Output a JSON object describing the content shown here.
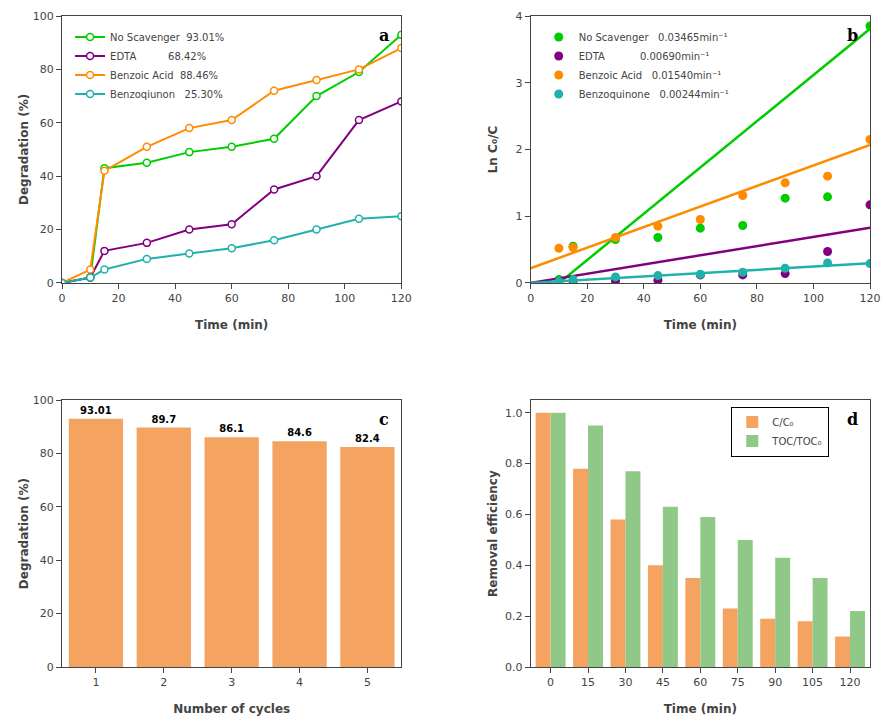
{
  "chart_data": [
    {
      "type": "line",
      "xlabel": "Time (min)",
      "ylabel": "Degradation (%)",
      "xlim": [
        0,
        120
      ],
      "ylim": [
        0,
        100
      ],
      "xticks": [
        0,
        20,
        40,
        60,
        80,
        100,
        120
      ],
      "yticks": [
        0,
        20,
        40,
        60,
        80,
        100
      ],
      "grid": false,
      "legend": "upper left",
      "marker": "o",
      "annotations": [
        "a"
      ],
      "x": [
        0,
        10,
        15,
        30,
        45,
        60,
        75,
        90,
        105,
        120
      ],
      "series": [
        {
          "name": "No Scavenger  93.01%",
          "color": "#00CC00",
          "values": [
            0,
            2,
            43,
            45,
            49,
            51,
            54,
            70,
            79,
            93
          ]
        },
        {
          "name": "EDTA          68.42%",
          "color": "#800080",
          "values": [
            0,
            2,
            12,
            15,
            20,
            22,
            35,
            40,
            61,
            68
          ]
        },
        {
          "name": "Benzoic Acid  88.46%",
          "color": "#FF8C00",
          "values": [
            0,
            5,
            42,
            51,
            58,
            61,
            72,
            76,
            80,
            88
          ]
        },
        {
          "name": "Benzoqiunon   25.30%",
          "color": "#20B2AA",
          "values": [
            0,
            2,
            5,
            9,
            11,
            13,
            16,
            20,
            24,
            25
          ]
        }
      ]
    },
    {
      "type": "scatter",
      "xlabel": "Time (min)",
      "ylabel": "Ln C₀/C",
      "xlim": [
        0,
        120
      ],
      "ylim": [
        0,
        4
      ],
      "xticks": [
        0,
        20,
        40,
        60,
        80,
        100,
        120
      ],
      "yticks": [
        0,
        1,
        2,
        3,
        4
      ],
      "grid": false,
      "legend": "upper left",
      "marker": "o",
      "annotations": [
        "b"
      ],
      "series": [
        {
          "name": "No Scavenger   0.03465min⁻¹",
          "color": "#00CC00",
          "x": [
            10,
            15,
            30,
            45,
            60,
            75,
            90,
            105,
            120
          ],
          "values": [
            0.05,
            0.55,
            0.65,
            0.68,
            0.82,
            0.86,
            1.27,
            1.29,
            3.85
          ],
          "fit": {
            "x": [
              10.36789,
              120
            ],
            "y": [
              0.00925,
              3.808
            ]
          }
        },
        {
          "name": "EDTA           0.00690min⁻¹",
          "color": "#800080",
          "x": [
            15,
            30,
            45,
            60,
            75,
            90,
            105,
            120
          ],
          "values": [
            0.03,
            0.03,
            0.04,
            0.12,
            0.12,
            0.14,
            0.47,
            1.17
          ],
          "fit": {
            "x": [
              0,
              120
            ],
            "y": [
              0,
              0.828
            ]
          }
        },
        {
          "name": "Benzoic Acid   0.01540min⁻¹",
          "color": "#FF8C00",
          "x": [
            10,
            15,
            30,
            45,
            60,
            75,
            90,
            105,
            120
          ],
          "values": [
            0.52,
            0.53,
            0.68,
            0.85,
            0.95,
            1.31,
            1.5,
            1.6,
            2.15
          ],
          "fit": {
            "x": [
              0,
              120
            ],
            "y": [
              0.22,
              2.068
            ]
          }
        },
        {
          "name": "Benzoquinone   0.00244min⁻¹",
          "color": "#20B2AA",
          "x": [
            10,
            15,
            30,
            45,
            60,
            75,
            90,
            105,
            120
          ],
          "values": [
            0.02,
            0.05,
            0.09,
            0.11,
            0.13,
            0.16,
            0.22,
            0.3,
            0.29
          ],
          "fit": {
            "x": [
              0,
              120
            ],
            "y": [
              0,
              0.2928
            ]
          }
        }
      ]
    },
    {
      "type": "bar",
      "xlabel": "Number of cycles",
      "ylabel": "Degradation (%)",
      "xlim": [
        0.5,
        5.5
      ],
      "ylim": [
        0,
        100
      ],
      "xticks": [
        1,
        2,
        3,
        4,
        5
      ],
      "yticks": [
        0,
        20,
        40,
        60,
        80,
        100
      ],
      "grid": false,
      "data_labels": true,
      "color": "#F4A460",
      "annotations": [
        "c"
      ],
      "x": [
        1,
        2,
        3,
        4,
        5
      ],
      "values": [
        93.01,
        89.7,
        86.1,
        84.6,
        82.4
      ]
    },
    {
      "type": "bar",
      "xlabel": "Time (min)",
      "ylabel": "Removal efficiency",
      "xlim": [
        -8,
        128
      ],
      "ylim": [
        0,
        1.05
      ],
      "xticks": [
        0,
        15,
        30,
        45,
        60,
        75,
        90,
        105,
        120
      ],
      "yticks": [
        {
          "value": 0,
          "label": "0.0"
        },
        0.2,
        0.4,
        0.6,
        0.8,
        {
          "value": 1,
          "label": "1.0"
        }
      ],
      "grid": false,
      "legend": "upper right",
      "annotations": [
        "d"
      ],
      "x": [
        0,
        15,
        30,
        45,
        60,
        75,
        90,
        105,
        120
      ],
      "series": [
        {
          "name": "C/C₀",
          "color": "#F4A460",
          "values": [
            1.0,
            0.78,
            0.58,
            0.4,
            0.35,
            0.23,
            0.19,
            0.18,
            0.12
          ]
        },
        {
          "name": "TOC/TOC₀",
          "color": "#90C987",
          "values": [
            1.0,
            0.95,
            0.77,
            0.63,
            0.59,
            0.5,
            0.43,
            0.35,
            0.22
          ]
        }
      ]
    }
  ]
}
